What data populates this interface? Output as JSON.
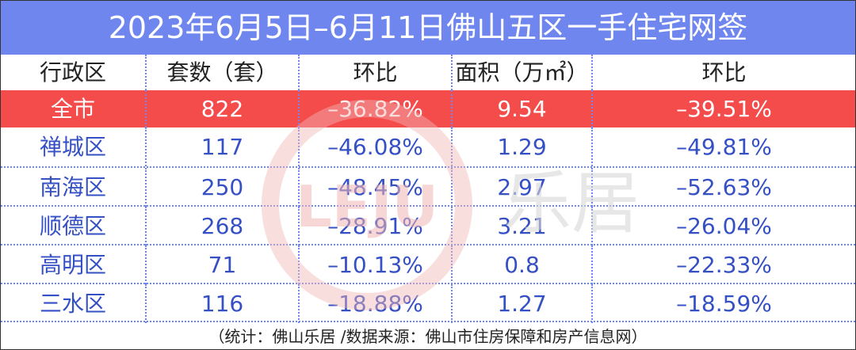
{
  "title": "2023年6月5日–6月11日佛山五区一手住宅网签",
  "table": {
    "header": [
      "行政区",
      "套数（套）",
      "环比",
      "面积（万㎡）",
      "环比"
    ],
    "rows": [
      [
        "全市",
        "822",
        "–36.82%",
        "9.54",
        "–39.51%"
      ],
      [
        "禅城区",
        "117",
        "–46.08%",
        "1.29",
        "–49.81%"
      ],
      [
        "南海区",
        "250",
        "–48.45%",
        "2.97",
        "–52.63%"
      ],
      [
        "顺德区",
        "268",
        "–28.91%",
        "3.21",
        "–26.04%"
      ],
      [
        "高明区",
        "71",
        "–10.13%",
        "0.8",
        "–22.33%"
      ],
      [
        "三水区",
        "116",
        "–18.88%",
        "1.27",
        "–18.59%"
      ]
    ]
  },
  "footer": "（统计：佛山乐居 /数据来源：佛山市住房保障和房产信息网）",
  "watermark": {
    "logo": "LEJU",
    "name": "乐居"
  }
}
